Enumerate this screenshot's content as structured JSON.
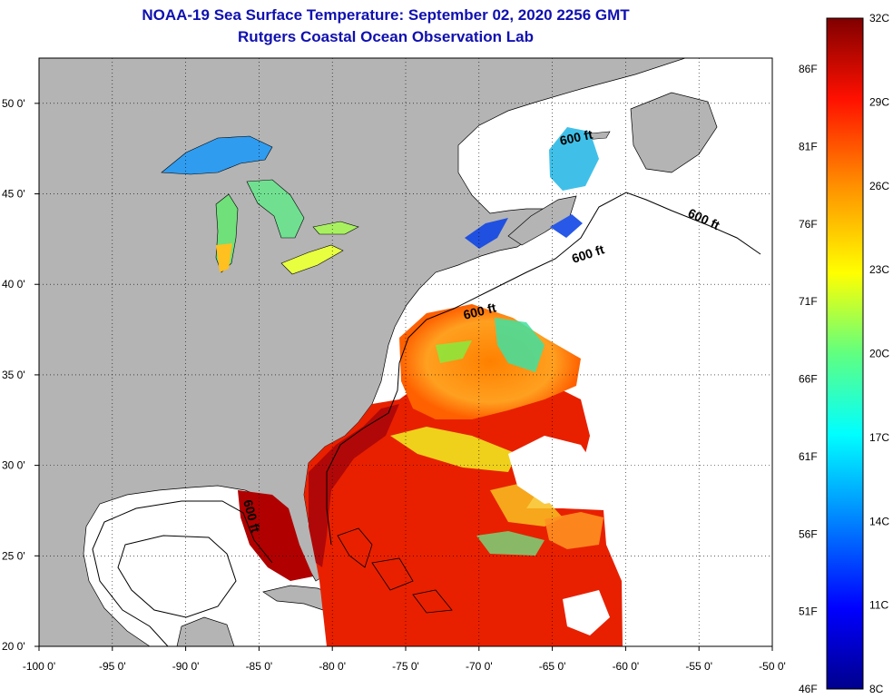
{
  "header": {
    "title": "NOAA-19 Sea Surface Temperature:  September 02, 2020 2256 GMT",
    "subtitle": "Rutgers Coastal Ocean Observation Lab"
  },
  "map": {
    "lon_range": [
      -100,
      -50
    ],
    "lat_range": [
      20,
      52.5
    ],
    "lon_ticks": [
      "-100 0'",
      "-95 0'",
      "-90 0'",
      "-85 0'",
      "-80 0'",
      "-75 0'",
      "-70 0'",
      "-65 0'",
      "-60 0'",
      "-55 0'",
      "-50 0'"
    ],
    "lat_ticks": [
      "20 0'",
      "25 0'",
      "30 0'",
      "35 0'",
      "40 0'",
      "45 0'",
      "50 0'"
    ],
    "land_color": "#b4b4b4",
    "ocean_nodata_color": "#ffffff",
    "contour_label": "600 ft",
    "grid": "dotted"
  },
  "colorbar": {
    "range_c": [
      8,
      32
    ],
    "left_labels": [
      "86F",
      "81F",
      "76F",
      "71F",
      "66F",
      "61F",
      "56F",
      "51F",
      "46F"
    ],
    "right_labels": [
      "32C",
      "29C",
      "26C",
      "23C",
      "20C",
      "17C",
      "14C",
      "11C",
      "8C"
    ]
  }
}
